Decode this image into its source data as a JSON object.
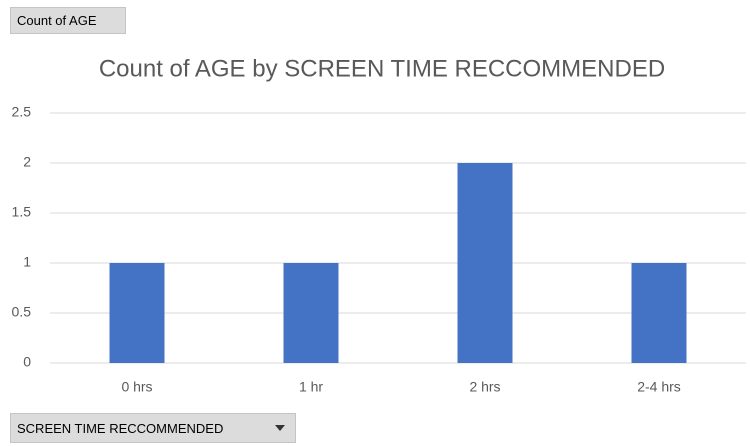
{
  "chart_data": {
    "type": "bar",
    "title": "Count of AGE by SCREEN TIME RECCOMMENDED",
    "categories": [
      "0 hrs",
      "1 hr",
      "2 hrs",
      "2-4 hrs"
    ],
    "values": [
      1,
      1,
      2,
      1
    ],
    "color": "#4472c4",
    "ylim": [
      0,
      2.5
    ],
    "yticks": [
      0,
      0.5,
      1,
      1.5,
      2,
      2.5
    ],
    "grid": true
  },
  "field_buttons": {
    "values_field": "Count of AGE",
    "axis_field": "SCREEN TIME RECCOMMENDED"
  }
}
